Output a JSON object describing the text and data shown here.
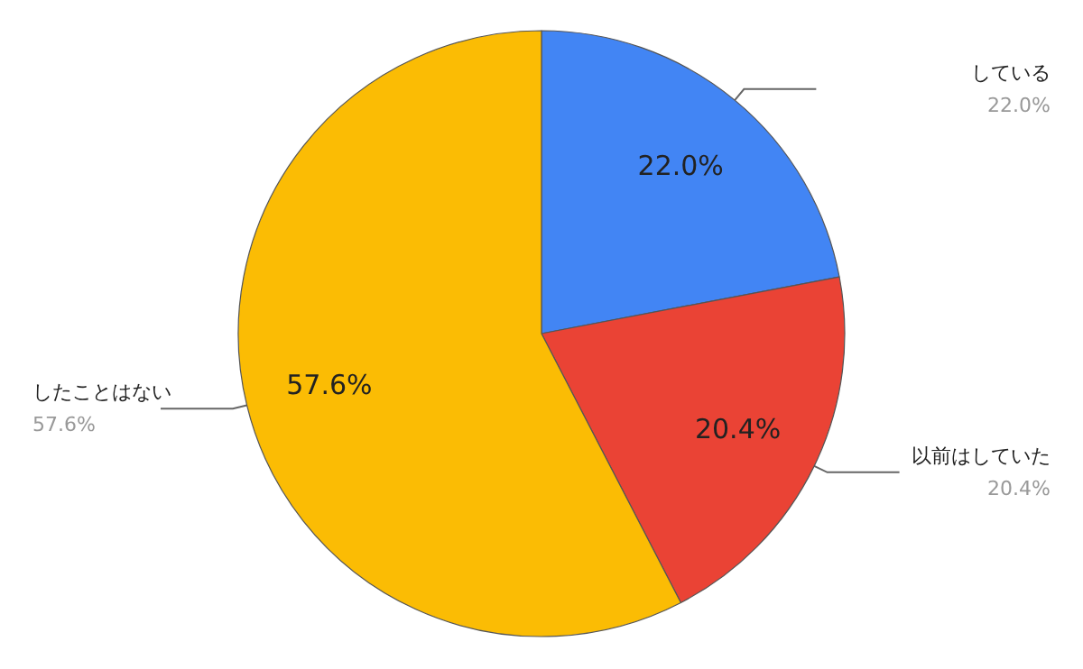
{
  "chart_data": {
    "type": "pie",
    "categories": [
      "している",
      "以前はしていた",
      "したことはない"
    ],
    "values": [
      22.0,
      20.4,
      57.6
    ],
    "colors": [
      "#4285f4",
      "#ea4335",
      "#fbbc04"
    ],
    "value_labels": [
      "22.0%",
      "20.4%",
      "57.6%"
    ]
  }
}
